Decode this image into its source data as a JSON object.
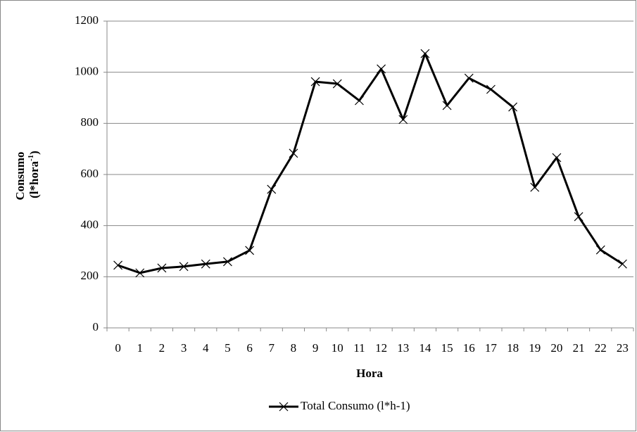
{
  "chart_data": {
    "type": "line",
    "categories": [
      "0",
      "1",
      "2",
      "3",
      "4",
      "5",
      "6",
      "7",
      "8",
      "9",
      "10",
      "11",
      "12",
      "13",
      "14",
      "15",
      "16",
      "17",
      "18",
      "19",
      "20",
      "21",
      "22",
      "23"
    ],
    "series": [
      {
        "name": "Total Consumo (l*h-1)",
        "color": "#000000",
        "values": [
          245,
          215,
          234,
          240,
          250,
          259,
          303,
          542,
          683,
          963,
          955,
          889,
          1013,
          815,
          1073,
          870,
          977,
          933,
          864,
          550,
          666,
          435,
          305,
          250
        ]
      }
    ],
    "xlabel": "Hora",
    "ylabel": {
      "line1": "Consumo",
      "line2": "(l*hora",
      "sup": "-1",
      "close": ")"
    },
    "ylim": [
      0,
      1200
    ],
    "yticks": [
      0,
      200,
      400,
      600,
      800,
      1000,
      1200
    ],
    "grid": true,
    "legend": "bottom"
  }
}
